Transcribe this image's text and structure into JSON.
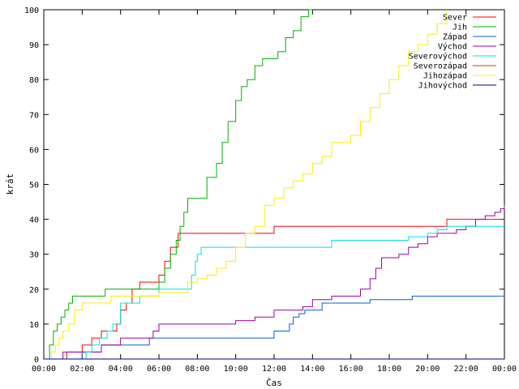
{
  "chart_data": {
    "type": "line",
    "xlabel": "Čas",
    "ylabel": "krát",
    "xlim": [
      "00:00",
      "24:00"
    ],
    "ylim": [
      0,
      100
    ],
    "x_ticks": [
      "00:00",
      "02:00",
      "04:00",
      "06:00",
      "08:00",
      "10:00",
      "12:00",
      "14:00",
      "16:00",
      "18:00",
      "20:00",
      "22:00",
      "00:00"
    ],
    "y_ticks": [
      0,
      10,
      20,
      30,
      40,
      50,
      60,
      70,
      80,
      90,
      100
    ],
    "grid": false,
    "legend_position": "top-right",
    "series": [
      {
        "name": "Sever",
        "color": "#ff0000",
        "x": [
          0.9,
          1.2,
          1.6,
          2.0,
          2.5,
          3.0,
          3.5,
          3.8,
          4.0,
          4.3,
          4.6,
          5.0,
          5.5,
          6.0,
          6.3,
          6.6,
          7.0,
          7.5,
          8.0,
          9.0,
          10.0,
          11.0,
          11.8,
          12.0,
          14.0,
          16.0,
          18.0,
          20.0,
          20.8,
          21.0,
          22.0,
          24.0
        ],
        "y": [
          0,
          2,
          2,
          4,
          6,
          8,
          8,
          10,
          14,
          16,
          20,
          22,
          22,
          24,
          28,
          32,
          36,
          36,
          36,
          36,
          36,
          36,
          36,
          38,
          38,
          38,
          38,
          38,
          38,
          40,
          40,
          40
        ]
      },
      {
        "name": "Jih",
        "color": "#00b000",
        "x": [
          0.1,
          0.3,
          0.5,
          0.7,
          0.9,
          1.1,
          1.3,
          1.5,
          2.0,
          2.5,
          2.9,
          3.2,
          4.0,
          5.0,
          5.8,
          6.0,
          6.3,
          6.6,
          6.9,
          7.1,
          7.3,
          7.5,
          7.8,
          8.2,
          8.5,
          9.0,
          9.3,
          9.6,
          10.0,
          10.3,
          10.6,
          11.0,
          11.4,
          11.8,
          12.2,
          12.6,
          13.0,
          13.4,
          13.8,
          14.0
        ],
        "y": [
          0,
          4,
          8,
          10,
          12,
          14,
          16,
          18,
          18,
          18,
          18,
          20,
          20,
          20,
          20,
          22,
          26,
          30,
          34,
          38,
          42,
          46,
          46,
          46,
          52,
          56,
          62,
          68,
          74,
          78,
          80,
          84,
          86,
          86,
          88,
          92,
          94,
          98,
          100,
          100
        ]
      },
      {
        "name": "Západ",
        "color": "#0060d0",
        "x": [
          1.9,
          2.0,
          2.5,
          3.0,
          4.0,
          5.0,
          5.5,
          6.0,
          8.0,
          10.0,
          11.5,
          12.0,
          12.8,
          13.0,
          13.3,
          13.6,
          14.0,
          14.5,
          15.0,
          16.0,
          17.0,
          18.0,
          19.0,
          19.2,
          20.0,
          22.0,
          24.0
        ],
        "y": [
          0,
          2,
          2,
          4,
          4,
          4,
          6,
          6,
          6,
          6,
          6,
          8,
          10,
          12,
          13,
          14,
          14,
          16,
          16,
          16,
          17,
          17,
          17,
          18,
          18,
          18,
          18
        ]
      },
      {
        "name": "Východ",
        "color": "#a000a0",
        "x": [
          0.8,
          1.0,
          2.0,
          3.0,
          4.0,
          5.0,
          5.5,
          5.7,
          6.0,
          7.0,
          8.0,
          9.0,
          10.0,
          11.0,
          12.0,
          12.5,
          13.5,
          14.0,
          15.0,
          16.0,
          16.5,
          17.0,
          17.3,
          17.6,
          18.0,
          18.5,
          19.0,
          19.5,
          20.0,
          20.5,
          21.0,
          21.5,
          22.0,
          22.5,
          23.0,
          23.5,
          23.8,
          24.0
        ],
        "y": [
          0,
          2,
          2,
          4,
          6,
          6,
          6,
          8,
          10,
          10,
          10,
          10,
          11,
          12,
          14,
          14,
          15,
          17,
          18,
          18,
          20,
          23,
          26,
          29,
          29,
          30,
          32,
          33,
          35,
          36,
          36,
          37,
          38,
          40,
          41,
          42,
          43,
          44
        ]
      },
      {
        "name": "Severovýchod",
        "color": "#00e0e0",
        "x": [
          1.9,
          2.2,
          2.5,
          2.9,
          3.3,
          3.6,
          4.0,
          5.0,
          5.5,
          6.0,
          7.0,
          7.5,
          7.7,
          7.9,
          8.0,
          8.2,
          9.0,
          10.0,
          11.0,
          12.0,
          13.0,
          14.0,
          14.8,
          15.0,
          16.0,
          18.0,
          19.0,
          20.0,
          20.5,
          21.0,
          22.0,
          23.0,
          24.0
        ],
        "y": [
          0,
          2,
          4,
          6,
          8,
          10,
          16,
          18,
          18,
          20,
          20,
          20,
          24,
          28,
          30,
          32,
          32,
          32,
          32,
          32,
          32,
          32,
          32,
          34,
          34,
          34,
          35,
          36,
          37,
          38,
          38,
          38,
          38
        ]
      },
      {
        "name": "Severozápad",
        "color": "#c04000",
        "x": [
          0.9,
          1.0,
          2.0,
          3.0,
          4.0,
          5.0,
          6.0,
          8.0,
          10.0,
          12.0,
          14.0,
          16.0,
          18.0,
          20.0,
          24.0
        ],
        "y": [
          0,
          0,
          0,
          0,
          0,
          0,
          0,
          0,
          0,
          0,
          0,
          0,
          0,
          0,
          0
        ]
      },
      {
        "name": "Jihozápad",
        "color": "#ffee00",
        "x": [
          0.2,
          0.4,
          0.6,
          0.8,
          1.0,
          1.3,
          1.6,
          2.0,
          2.5,
          3.0,
          3.5,
          4.0,
          5.0,
          6.0,
          7.0,
          7.5,
          8.0,
          8.5,
          9.0,
          9.5,
          10.0,
          10.5,
          11.0,
          11.5,
          12.0,
          12.5,
          13.0,
          13.5,
          14.0,
          14.5,
          15.0,
          15.5,
          16.0,
          16.5,
          17.0,
          17.5,
          18.0,
          18.5,
          19.0,
          19.5,
          20.0,
          20.5,
          21.0
        ],
        "y": [
          0,
          2,
          4,
          6,
          8,
          10,
          14,
          16,
          16,
          16,
          18,
          18,
          18,
          19,
          19,
          22,
          23,
          24,
          26,
          28,
          32,
          36,
          38,
          44,
          46,
          49,
          51,
          53,
          56,
          58,
          62,
          62,
          64,
          68,
          72,
          76,
          80,
          84,
          88,
          90,
          93,
          96,
          100
        ]
      },
      {
        "name": "Jihovýchod",
        "color": "#000080",
        "x": [
          0.0,
          24.0
        ],
        "y": [
          0,
          0
        ]
      }
    ]
  }
}
